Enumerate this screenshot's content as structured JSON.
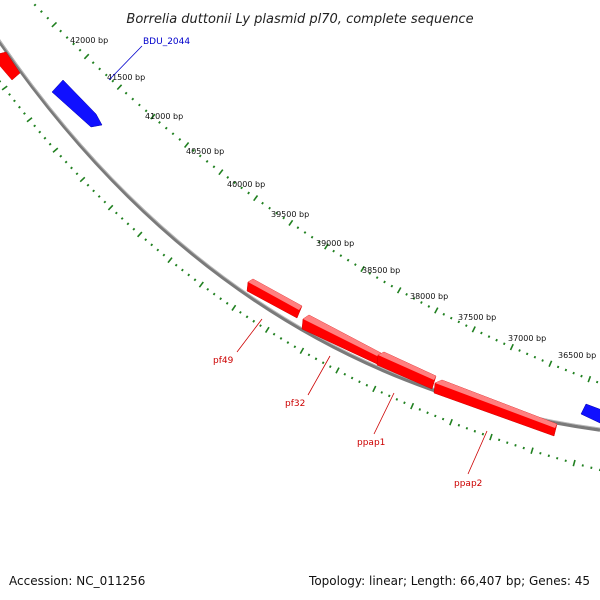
{
  "title": "Borrelia duttonii Ly plasmid pl70, complete sequence",
  "colors": {
    "forward_gene": "#ff0000",
    "reverse_gene": "#0000ff",
    "backbone": "#808080",
    "ticks": "#208020"
  },
  "scale_labels": [
    "42000 bp",
    "41500 bp",
    "41000 bp",
    "40500 bp",
    "40000 bp",
    "39500 bp",
    "39000 bp",
    "38500 bp",
    "38000 bp",
    "37500 bp",
    "37000 bp",
    "36500 bp"
  ],
  "genes": [
    {
      "label": "BDU_2044",
      "strand": "reverse",
      "color": "#0000ff"
    },
    {
      "label": "pf49",
      "strand": "forward",
      "color": "#ff0000"
    },
    {
      "label": "pf32",
      "strand": "forward",
      "color": "#ff0000"
    },
    {
      "label": "ppap1",
      "strand": "forward",
      "color": "#ff0000"
    },
    {
      "label": "ppap2",
      "strand": "forward",
      "color": "#ff0000"
    }
  ],
  "footer": {
    "accession": "Accession: NC_011256",
    "summary": "Topology: linear; Length: 66,407 bp; Genes: 45"
  }
}
